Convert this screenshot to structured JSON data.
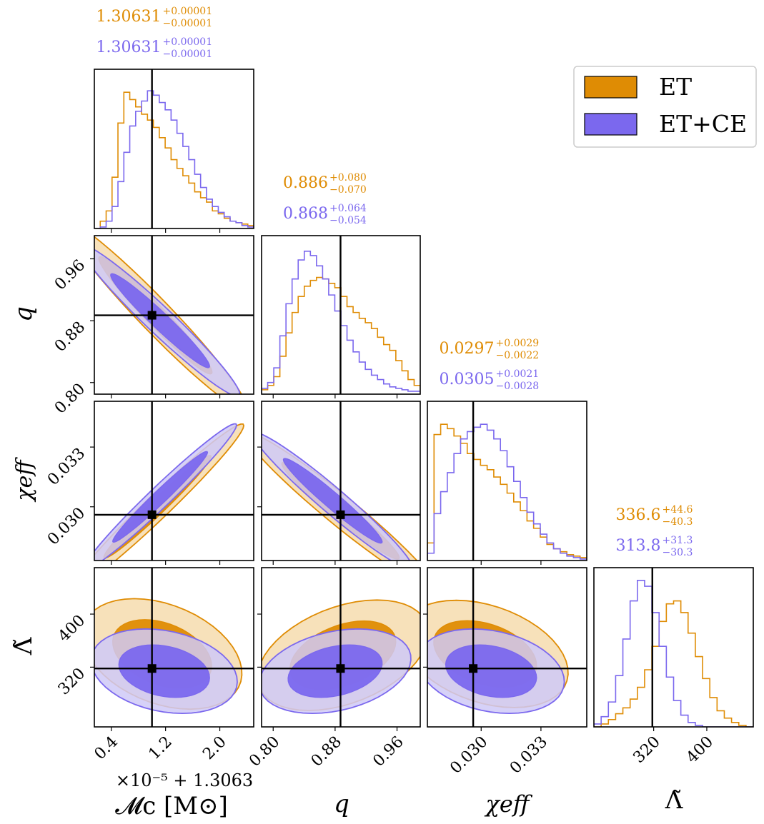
{
  "chart_data": {
    "type": "corner",
    "title": "",
    "parameters": [
      {
        "key": "mc",
        "axis_label": "𝓜c [M⊙]",
        "range": [
          0.15,
          2.5
        ],
        "ticks": [
          0.4,
          1.2,
          2.0
        ],
        "tick_labels": [
          "0.4",
          "1.2",
          "2.0"
        ],
        "offset_label": "×10⁻⁵ + 1.3063",
        "injection": 1.0
      },
      {
        "key": "q",
        "axis_label": "q",
        "range": [
          0.785,
          0.99
        ],
        "ticks": [
          0.8,
          0.88,
          0.96
        ],
        "tick_labels": [
          "0.80",
          "0.88",
          "0.96"
        ],
        "injection": 0.887
      },
      {
        "key": "chi",
        "axis_label": "χeff",
        "range": [
          0.0273,
          0.0353
        ],
        "ticks": [
          0.03,
          0.033
        ],
        "tick_labels": [
          "0.030",
          "0.033"
        ],
        "injection": 0.0296
      },
      {
        "key": "lam",
        "axis_label": "Λ̃",
        "range": [
          230,
          470
        ],
        "ticks": [
          320,
          400
        ],
        "tick_labels": [
          "320",
          "400"
        ],
        "injection": 318
      }
    ],
    "legend": {
      "position": "top-right",
      "entries": [
        {
          "label": "ET",
          "color": "#df8c04"
        },
        {
          "label": "ET+CE",
          "color": "#7b68ee"
        }
      ]
    },
    "summaries": [
      {
        "param": "mc",
        "series": [
          {
            "name": "ET",
            "median": "1.30631",
            "plus": "+0.00001",
            "minus": "−0.00001"
          },
          {
            "name": "ET+CE",
            "median": "1.30631",
            "plus": "+0.00001",
            "minus": "−0.00001"
          }
        ]
      },
      {
        "param": "q",
        "series": [
          {
            "name": "ET",
            "median": "0.886",
            "plus": "+0.080",
            "minus": "−0.070"
          },
          {
            "name": "ET+CE",
            "median": "0.868",
            "plus": "+0.064",
            "minus": "−0.054"
          }
        ]
      },
      {
        "param": "chi",
        "series": [
          {
            "name": "ET",
            "median": "0.0297",
            "plus": "+0.0029",
            "minus": "−0.0022"
          },
          {
            "name": "ET+CE",
            "median": "0.0305",
            "plus": "+0.0021",
            "minus": "−0.0028"
          }
        ]
      },
      {
        "param": "lam",
        "series": [
          {
            "name": "ET",
            "median": "336.6",
            "plus": "+44.6",
            "minus": "−40.3"
          },
          {
            "name": "ET+CE",
            "median": "313.8",
            "plus": "+31.3",
            "minus": "−30.3"
          }
        ]
      }
    ],
    "histograms": {
      "mc": {
        "ET": [
          0,
          0.05,
          0.12,
          0.35,
          0.72,
          0.93,
          0.88,
          0.83,
          0.78,
          0.74,
          0.69,
          0.62,
          0.55,
          0.47,
          0.41,
          0.36,
          0.31,
          0.25,
          0.21,
          0.18,
          0.12,
          0.1,
          0.07,
          0.05,
          0.04,
          0.03,
          0.02
        ],
        "ET+CE": [
          0,
          0.01,
          0.05,
          0.15,
          0.32,
          0.52,
          0.7,
          0.8,
          0.87,
          0.94,
          0.91,
          0.86,
          0.81,
          0.74,
          0.65,
          0.56,
          0.47,
          0.37,
          0.28,
          0.2,
          0.15,
          0.11,
          0.08,
          0.05,
          0.04,
          0.02,
          0.01
        ]
      },
      "q": {
        "ET": [
          0.03,
          0.06,
          0.12,
          0.26,
          0.42,
          0.56,
          0.67,
          0.74,
          0.78,
          0.8,
          0.79,
          0.76,
          0.73,
          0.67,
          0.6,
          0.56,
          0.52,
          0.49,
          0.45,
          0.39,
          0.34,
          0.3,
          0.23,
          0.16,
          0.1,
          0.06
        ],
        "ET+CE": [
          0.04,
          0.08,
          0.18,
          0.4,
          0.62,
          0.79,
          0.92,
          0.98,
          0.95,
          0.88,
          0.79,
          0.68,
          0.57,
          0.47,
          0.37,
          0.29,
          0.22,
          0.17,
          0.13,
          0.1,
          0.07,
          0.05,
          0.04,
          0.03,
          0.02,
          0.02
        ]
      },
      "chi": {
        "ET": [
          0.12,
          0.86,
          0.93,
          0.9,
          0.85,
          0.8,
          0.73,
          0.69,
          0.65,
          0.62,
          0.57,
          0.52,
          0.46,
          0.4,
          0.34,
          0.27,
          0.22,
          0.16,
          0.11,
          0.08,
          0.06,
          0.04,
          0.03,
          0.02
        ],
        "ET+CE": [
          0.05,
          0.32,
          0.47,
          0.6,
          0.73,
          0.83,
          0.88,
          0.91,
          0.93,
          0.89,
          0.83,
          0.75,
          0.64,
          0.54,
          0.43,
          0.33,
          0.25,
          0.18,
          0.12,
          0.08,
          0.05,
          0.03,
          0.02,
          0.01
        ]
      },
      "lam": {
        "ET": [
          0,
          0.02,
          0.05,
          0.09,
          0.13,
          0.19,
          0.27,
          0.39,
          0.55,
          0.72,
          0.84,
          0.86,
          0.78,
          0.64,
          0.48,
          0.33,
          0.2,
          0.11,
          0.06,
          0.03,
          0.01,
          0
        ],
        "ET+CE": [
          0.02,
          0.07,
          0.17,
          0.35,
          0.6,
          0.86,
          1.0,
          0.96,
          0.78,
          0.55,
          0.34,
          0.18,
          0.08,
          0.03,
          0.01,
          0,
          0,
          0,
          0,
          0,
          0,
          0
        ]
      }
    },
    "contours_2d": [
      {
        "x": "mc",
        "y": "q",
        "ET": {
          "c": [
            1.05,
            0.887
          ],
          "s": [
            0.55,
            0.05
          ],
          "rho": -0.97
        },
        "ET+CE": {
          "c": [
            1.12,
            0.88
          ],
          "s": [
            0.48,
            0.04
          ],
          "rho": -0.97
        }
      },
      {
        "x": "mc",
        "y": "chi",
        "ET": {
          "c": [
            1.08,
            0.03
          ],
          "s": [
            0.52,
            0.0017
          ],
          "rho": 0.98
        },
        "ET+CE": {
          "c": [
            1.12,
            0.0305
          ],
          "s": [
            0.46,
            0.0015
          ],
          "rho": 0.98
        }
      },
      {
        "x": "q",
        "y": "chi",
        "ET": {
          "c": [
            0.887,
            0.0298
          ],
          "s": [
            0.05,
            0.0016
          ],
          "rho": -0.97
        },
        "ET+CE": {
          "c": [
            0.877,
            0.0303
          ],
          "s": [
            0.042,
            0.0014
          ],
          "rho": -0.97
        }
      },
      {
        "x": "mc",
        "y": "lam",
        "ET": {
          "c": [
            1.15,
            340
          ],
          "s": [
            0.48,
            34
          ],
          "rho": -0.35
        },
        "ET+CE": {
          "c": [
            1.18,
            314
          ],
          "s": [
            0.44,
            26
          ],
          "rho": -0.25
        }
      },
      {
        "x": "q",
        "y": "lam",
        "ET": {
          "c": [
            0.89,
            338
          ],
          "s": [
            0.045,
            34
          ],
          "rho": 0.4
        },
        "ET+CE": {
          "c": [
            0.88,
            314
          ],
          "s": [
            0.04,
            26
          ],
          "rho": 0.3
        }
      },
      {
        "x": "chi",
        "y": "lam",
        "ET": {
          "c": [
            0.0302,
            340
          ],
          "s": [
            0.0017,
            33
          ],
          "rho": -0.35
        },
        "ET+CE": {
          "c": [
            0.0305,
            314
          ],
          "s": [
            0.0015,
            26
          ],
          "rho": -0.25
        }
      }
    ]
  }
}
